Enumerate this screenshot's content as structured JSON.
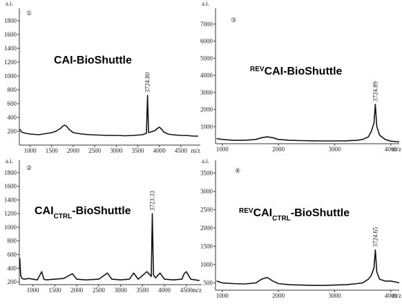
{
  "chart_data": [
    {
      "type": "line",
      "label": "①",
      "title": [
        "CAI-BioShuttle"
      ],
      "ylabel": "a.i.",
      "xlabel": "m/z",
      "xlim": [
        750,
        4950
      ],
      "xticks": [
        1000,
        1500,
        2000,
        2500,
        3000,
        3500,
        4000,
        4500
      ],
      "ylim": [
        0,
        1900
      ],
      "yticks": [
        200,
        400,
        600,
        800,
        1000,
        1200,
        1400,
        1600,
        1800
      ],
      "annotations": [
        {
          "text": "3724.80",
          "x": 3724.8
        }
      ],
      "series": [
        {
          "color": "#111111",
          "x": [
            760,
            800,
            900,
            1000,
            1100,
            1200,
            1300,
            1400,
            1500,
            1600,
            1700,
            1750,
            1800,
            1850,
            1900,
            2000,
            2200,
            2400,
            2600,
            2800,
            3000,
            3200,
            3400,
            3600,
            3700,
            3724.8,
            3750,
            3800,
            3900,
            3950,
            4000,
            4050,
            4100,
            4200,
            4300,
            4400,
            4500,
            4600,
            4700,
            4800,
            4900
          ],
          "values": [
            230,
            190,
            170,
            160,
            155,
            150,
            160,
            170,
            180,
            200,
            240,
            270,
            290,
            270,
            230,
            180,
            160,
            150,
            145,
            140,
            140,
            135,
            140,
            150,
            170,
            720,
            180,
            190,
            210,
            240,
            260,
            230,
            190,
            160,
            150,
            145,
            140,
            140,
            135,
            130,
            130
          ]
        }
      ]
    },
    {
      "type": "line",
      "label": "③",
      "title": [
        "REV",
        "CAI-BioShuttle"
      ],
      "ylabel": "a.i.",
      "xlabel": "m/z",
      "xlim": [
        880,
        4150
      ],
      "xticks": [
        1000,
        2000,
        3000,
        4000
      ],
      "ylim": [
        0,
        7600
      ],
      "yticks": [
        1000,
        2000,
        3000,
        4000,
        5000,
        6000,
        7000
      ],
      "annotations": [
        {
          "text": "3724.89",
          "x": 3724.89
        }
      ],
      "series": [
        {
          "color": "#111111",
          "x": [
            900,
            1000,
            1200,
            1400,
            1600,
            1700,
            1800,
            1900,
            2000,
            2200,
            2400,
            2600,
            2800,
            3000,
            3200,
            3400,
            3500,
            3600,
            3650,
            3700,
            3724.89,
            3750,
            3800,
            3900,
            4000,
            4100,
            4150
          ],
          "values": [
            300,
            250,
            200,
            200,
            250,
            350,
            400,
            350,
            250,
            200,
            180,
            170,
            160,
            160,
            170,
            200,
            250,
            400,
            700,
            1200,
            2300,
            1000,
            500,
            250,
            150,
            120,
            100
          ]
        }
      ]
    },
    {
      "type": "line",
      "label": "②",
      "title": [
        "CAI",
        "CTRL",
        "-BioShuttle"
      ],
      "ylabel": "a.i.",
      "xlabel": "m/z",
      "xlim": [
        690,
        4850
      ],
      "xticks": [
        1000,
        1500,
        2000,
        2500,
        3000,
        3500,
        4000,
        4500
      ],
      "ylim": [
        160,
        1900
      ],
      "yticks": [
        200,
        400,
        600,
        800,
        1000,
        1200,
        1400,
        1600,
        1800
      ],
      "annotations": [
        {
          "text": "3723.33",
          "x": 3723.33
        }
      ],
      "series": [
        {
          "color": "#111111",
          "x": [
            700,
            720,
            750,
            800,
            900,
            1000,
            1100,
            1200,
            1250,
            1300,
            1500,
            1700,
            1900,
            2000,
            2200,
            2500,
            2700,
            2800,
            3000,
            3200,
            3300,
            3400,
            3600,
            3700,
            3723.33,
            3750,
            3800,
            3900,
            4000,
            4200,
            4400,
            4450,
            4500,
            4600,
            4700,
            4800
          ],
          "values": [
            550,
            300,
            250,
            240,
            250,
            240,
            230,
            350,
            240,
            230,
            240,
            250,
            320,
            240,
            230,
            240,
            330,
            240,
            230,
            240,
            330,
            240,
            350,
            280,
            1200,
            300,
            260,
            330,
            240,
            230,
            240,
            320,
            350,
            240,
            230,
            220
          ]
        }
      ]
    },
    {
      "type": "line",
      "label": "④",
      "title": [
        "REV",
        "CAI",
        "CTRL",
        "-BioShuttle"
      ],
      "ylabel": "a.i.",
      "xlabel": "m/z",
      "xlim": [
        880,
        4150
      ],
      "xticks": [
        1000,
        2000,
        3000,
        4000
      ],
      "ylim": [
        300,
        3700
      ],
      "yticks": [
        500,
        1000,
        1500,
        2000,
        2500,
        3000,
        3500
      ],
      "annotations": [
        {
          "text": "3724.65",
          "x": 3724.65
        }
      ],
      "series": [
        {
          "color": "#111111",
          "x": [
            900,
            1000,
            1200,
            1400,
            1600,
            1700,
            1800,
            1900,
            2000,
            2200,
            2400,
            2600,
            2800,
            3000,
            3200,
            3400,
            3500,
            3600,
            3650,
            3700,
            3724.65,
            3750,
            3800,
            3900,
            4000,
            4100,
            4150
          ],
          "values": [
            550,
            500,
            480,
            470,
            500,
            600,
            650,
            550,
            480,
            450,
            440,
            430,
            430,
            440,
            450,
            480,
            500,
            600,
            700,
            900,
            1400,
            800,
            600,
            550,
            550,
            520,
            500
          ]
        }
      ]
    }
  ]
}
